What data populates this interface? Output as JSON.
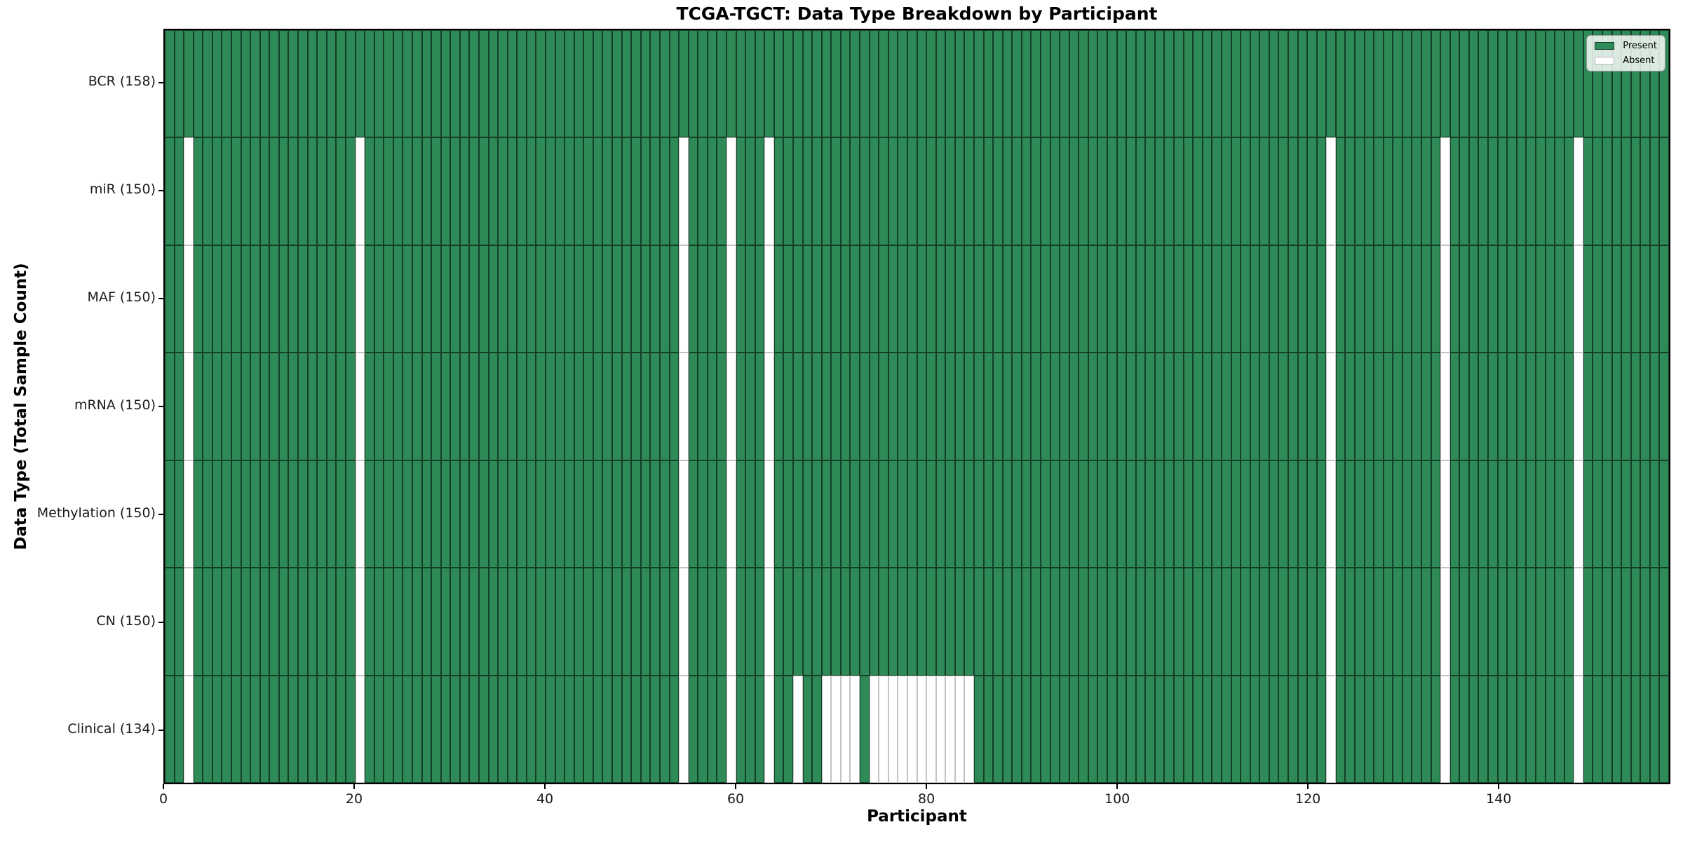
{
  "chart_data": {
    "type": "heatmap",
    "title": "TCGA-TGCT: Data Type Breakdown by Participant",
    "xlabel": "Participant",
    "ylabel": "Data Type (Total Sample Count)",
    "x_ticks": [
      0,
      20,
      40,
      60,
      80,
      100,
      120,
      140
    ],
    "x_range": [
      0,
      158
    ],
    "n_participants": 158,
    "grid": false,
    "rows": [
      {
        "key": "bcr",
        "label": "BCR (158)",
        "total": 158,
        "absent": []
      },
      {
        "key": "mir",
        "label": "miR (150)",
        "total": 150,
        "absent": [
          2,
          20,
          54,
          59,
          63,
          122,
          134,
          148
        ]
      },
      {
        "key": "maf",
        "label": "MAF (150)",
        "total": 150,
        "absent": [
          2,
          20,
          54,
          59,
          63,
          122,
          134,
          148
        ]
      },
      {
        "key": "mrna",
        "label": "mRNA (150)",
        "total": 150,
        "absent": [
          2,
          20,
          54,
          59,
          63,
          122,
          134,
          148
        ]
      },
      {
        "key": "methylation",
        "label": "Methylation (150)",
        "total": 150,
        "absent": [
          2,
          20,
          54,
          59,
          63,
          122,
          134,
          148
        ]
      },
      {
        "key": "cn",
        "label": "CN (150)",
        "total": 150,
        "absent": [
          2,
          20,
          54,
          59,
          63,
          122,
          134,
          148
        ]
      },
      {
        "key": "clinical",
        "label": "Clinical (134)",
        "total": 134,
        "absent": [
          2,
          20,
          54,
          59,
          63,
          66,
          69,
          70,
          71,
          72,
          74,
          75,
          76,
          77,
          78,
          79,
          80,
          81,
          82,
          83,
          84,
          122,
          134,
          148
        ]
      }
    ],
    "legend": {
      "position": "upper right",
      "items": [
        {
          "label": "Present",
          "color": "#2e8b57"
        },
        {
          "label": "Absent",
          "color": "#ffffff"
        }
      ]
    },
    "colors": {
      "present": "#2e8b57",
      "absent": "#ffffff",
      "cell_edge": "#1f1f1f",
      "frame": "#000000"
    }
  }
}
